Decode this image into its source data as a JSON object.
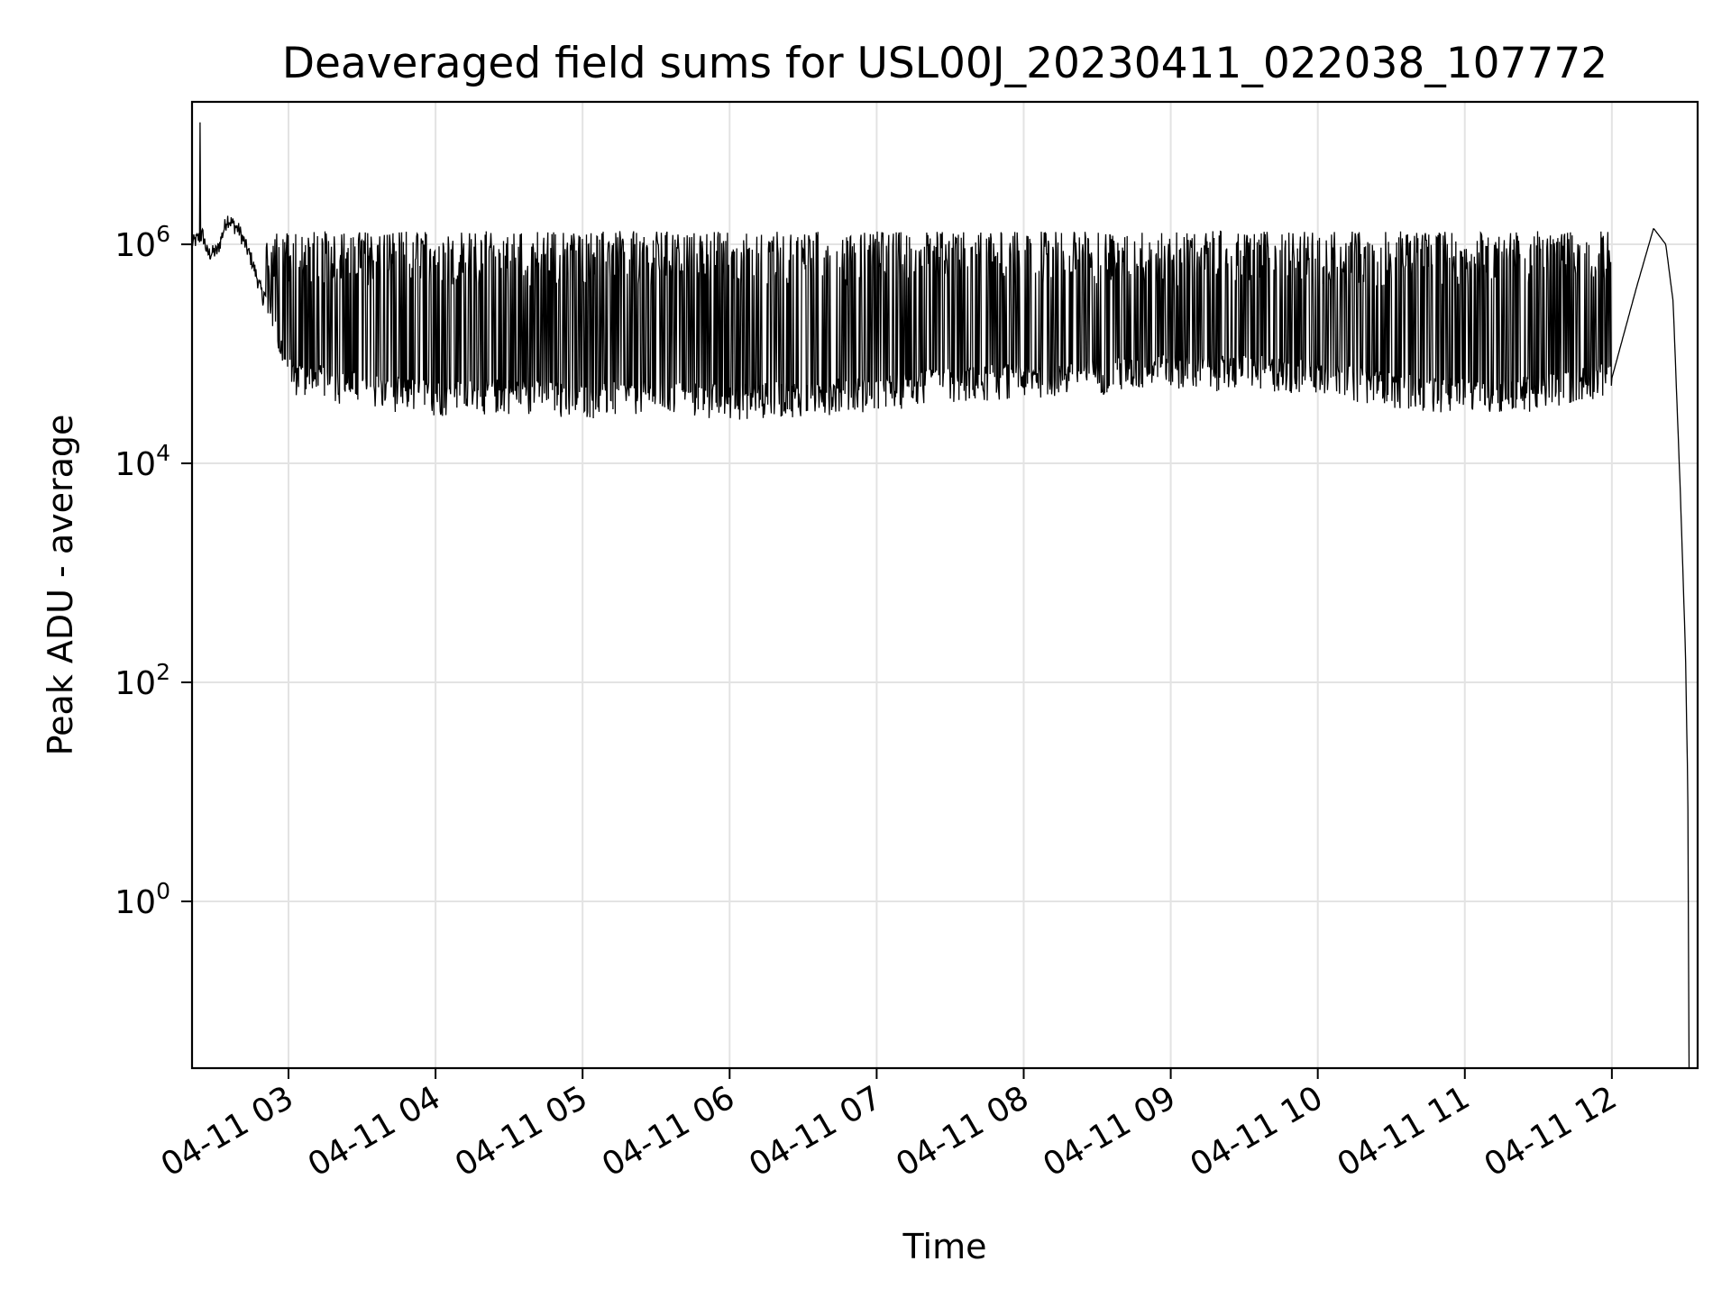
{
  "chart_data": {
    "type": "line",
    "title": "Deaveraged field sums for USL00J_20230411_022038_107772",
    "xlabel": "Time",
    "ylabel": "Peak ADU - average",
    "yscale": "log",
    "ylim": [
      0.03,
      20000000
    ],
    "xlim": [
      "2023-04-11 02:20:38",
      "2023-04-11 12:35:00"
    ],
    "grid": true,
    "x_ticks": [
      {
        "value": "2023-04-11 03:00",
        "label": "04-11 03"
      },
      {
        "value": "2023-04-11 04:00",
        "label": "04-11 04"
      },
      {
        "value": "2023-04-11 05:00",
        "label": "04-11 05"
      },
      {
        "value": "2023-04-11 06:00",
        "label": "04-11 06"
      },
      {
        "value": "2023-04-11 07:00",
        "label": "04-11 07"
      },
      {
        "value": "2023-04-11 08:00",
        "label": "04-11 08"
      },
      {
        "value": "2023-04-11 09:00",
        "label": "04-11 09"
      },
      {
        "value": "2023-04-11 10:00",
        "label": "04-11 10"
      },
      {
        "value": "2023-04-11 11:00",
        "label": "04-11 11"
      },
      {
        "value": "2023-04-11 12:00",
        "label": "04-11 12"
      }
    ],
    "y_ticks": [
      {
        "value": 1,
        "base": "10",
        "exp": "0"
      },
      {
        "value": 100,
        "base": "10",
        "exp": "2"
      },
      {
        "value": 10000,
        "base": "10",
        "exp": "4"
      },
      {
        "value": 1000000,
        "base": "10",
        "exp": "6"
      }
    ],
    "series": [
      {
        "color": "#000000",
        "baseline_points": [
          [
            "2023-04-11 02:20:38",
            1000000
          ],
          [
            "2023-04-11 02:25",
            1200000
          ],
          [
            "2023-04-11 02:27",
            800000
          ],
          [
            "2023-04-11 02:31",
            850000
          ],
          [
            "2023-04-11 02:35",
            1700000
          ],
          [
            "2023-04-11 02:40",
            1300000
          ],
          [
            "2023-04-11 02:45",
            700000
          ],
          [
            "2023-04-11 02:50",
            300000
          ],
          [
            "2023-04-11 02:55",
            150000
          ],
          [
            "2023-04-11 03:00",
            60000
          ],
          [
            "2023-04-11 03:30",
            45000
          ],
          [
            "2023-04-11 04:00",
            38000
          ],
          [
            "2023-04-11 04:30",
            40000
          ],
          [
            "2023-04-11 05:00",
            36000
          ],
          [
            "2023-04-11 05:30",
            38000
          ],
          [
            "2023-04-11 06:00",
            35000
          ],
          [
            "2023-04-11 06:30",
            38000
          ],
          [
            "2023-04-11 07:00",
            42000
          ],
          [
            "2023-04-11 07:30",
            50000
          ],
          [
            "2023-04-11 08:00",
            55000
          ],
          [
            "2023-04-11 08:30",
            60000
          ],
          [
            "2023-04-11 09:00",
            65000
          ],
          [
            "2023-04-11 09:30",
            65000
          ],
          [
            "2023-04-11 10:00",
            60000
          ],
          [
            "2023-04-11 10:30",
            45000
          ],
          [
            "2023-04-11 11:00",
            40000
          ],
          [
            "2023-04-11 11:30",
            42000
          ],
          [
            "2023-04-11 12:00",
            60000
          ],
          [
            "2023-04-11 12:10",
            400000
          ],
          [
            "2023-04-11 12:17",
            1400000
          ],
          [
            "2023-04-11 12:22",
            1000000
          ],
          [
            "2023-04-11 12:25",
            300000
          ],
          [
            "2023-04-11 12:28",
            5000
          ],
          [
            "2023-04-11 12:30",
            200
          ],
          [
            "2023-04-11 12:31",
            10
          ],
          [
            "2023-04-11 12:31:30",
            0.03
          ]
        ],
        "envelope_max": 1200000,
        "spike": [
          "2023-04-11 02:24",
          13000000
        ]
      }
    ]
  }
}
